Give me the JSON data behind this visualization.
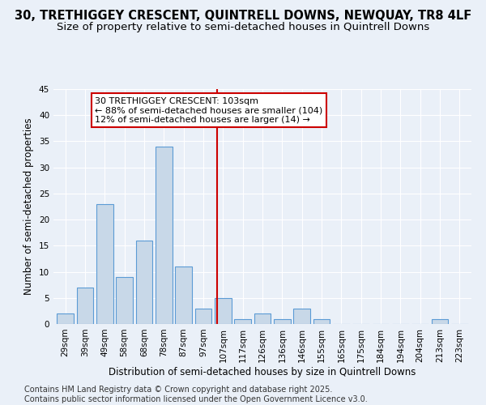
{
  "title1": "30, TRETHIGGEY CRESCENT, QUINTRELL DOWNS, NEWQUAY, TR8 4LF",
  "title2": "Size of property relative to semi-detached houses in Quintrell Downs",
  "xlabel": "Distribution of semi-detached houses by size in Quintrell Downs",
  "ylabel": "Number of semi-detached properties",
  "footnote1": "Contains HM Land Registry data © Crown copyright and database right 2025.",
  "footnote2": "Contains public sector information licensed under the Open Government Licence v3.0.",
  "bar_labels": [
    "29sqm",
    "39sqm",
    "49sqm",
    "58sqm",
    "68sqm",
    "78sqm",
    "87sqm",
    "97sqm",
    "107sqm",
    "117sqm",
    "126sqm",
    "136sqm",
    "146sqm",
    "155sqm",
    "165sqm",
    "175sqm",
    "184sqm",
    "194sqm",
    "204sqm",
    "213sqm",
    "223sqm"
  ],
  "bar_values": [
    2,
    7,
    23,
    9,
    16,
    34,
    11,
    3,
    5,
    1,
    2,
    1,
    3,
    1,
    0,
    0,
    0,
    0,
    0,
    1,
    0
  ],
  "bar_color": "#c8d8e8",
  "bar_edge_color": "#5b9bd5",
  "annotation_text": "30 TRETHIGGEY CRESCENT: 103sqm\n← 88% of semi-detached houses are smaller (104)\n12% of semi-detached houses are larger (14) →",
  "vline_x": 7.7,
  "vline_color": "#cc0000",
  "annotation_box_color": "#cc0000",
  "annotation_box_facecolor": "white",
  "ylim": [
    0,
    45
  ],
  "yticks": [
    0,
    5,
    10,
    15,
    20,
    25,
    30,
    35,
    40,
    45
  ],
  "bg_color": "#eaf0f8",
  "grid_color": "white",
  "title_fontsize": 10.5,
  "subtitle_fontsize": 9.5,
  "axis_fontsize": 8.5,
  "tick_fontsize": 7.5,
  "annot_fontsize": 8,
  "footnote_fontsize": 7
}
